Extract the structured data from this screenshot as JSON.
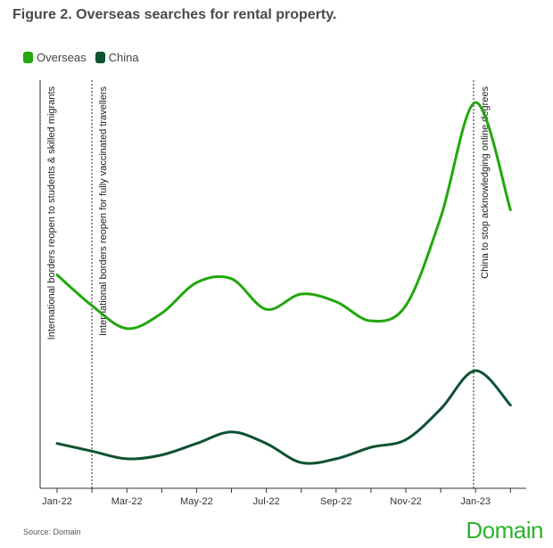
{
  "title": "Figure 2. Overseas searches for rental property.",
  "source": "Source: Domain",
  "brand": "Domain",
  "colors": {
    "overseas": "#22a70d",
    "china": "#0e5231",
    "axis": "#333333"
  },
  "chart_data": {
    "type": "line",
    "title": "Figure 2. Overseas searches for rental property.",
    "x": [
      "Jan-22",
      "Feb-22",
      "Mar-22",
      "Apr-22",
      "May-22",
      "Jun-22",
      "Jul-22",
      "Aug-22",
      "Sep-22",
      "Oct-22",
      "Nov-22",
      "Dec-22",
      "Jan-23",
      "Feb-23"
    ],
    "x_tick_labels": [
      {
        "label": "Jan-22",
        "index": 0
      },
      {
        "label": "Mar-22",
        "index": 2
      },
      {
        "label": "May-22",
        "index": 4
      },
      {
        "label": "Jul-22",
        "index": 6
      },
      {
        "label": "Sep-22",
        "index": 8
      },
      {
        "label": "Nov-22",
        "index": 10
      },
      {
        "label": "Jan-23",
        "index": 12
      }
    ],
    "ylim": [
      0,
      100
    ],
    "series": [
      {
        "name": "Overseas",
        "values": [
          55,
          47,
          41,
          45,
          53,
          54,
          46,
          50,
          48,
          43,
          47,
          70,
          100,
          72
        ]
      },
      {
        "name": "China",
        "values": [
          11,
          9,
          7,
          8,
          11,
          14,
          11,
          6,
          7,
          10,
          12,
          20,
          30,
          21
        ]
      }
    ],
    "annotations": [
      {
        "text": "International borders reopen to students & skilled migrants",
        "index": 0
      },
      {
        "text": "International borders reopen for fully vaccinated travellers",
        "index": 1
      },
      {
        "text": "China to stop acknowledging online degrees",
        "index": 12
      }
    ],
    "legend": [
      "Overseas",
      "China"
    ],
    "legend_position": "top-left"
  }
}
